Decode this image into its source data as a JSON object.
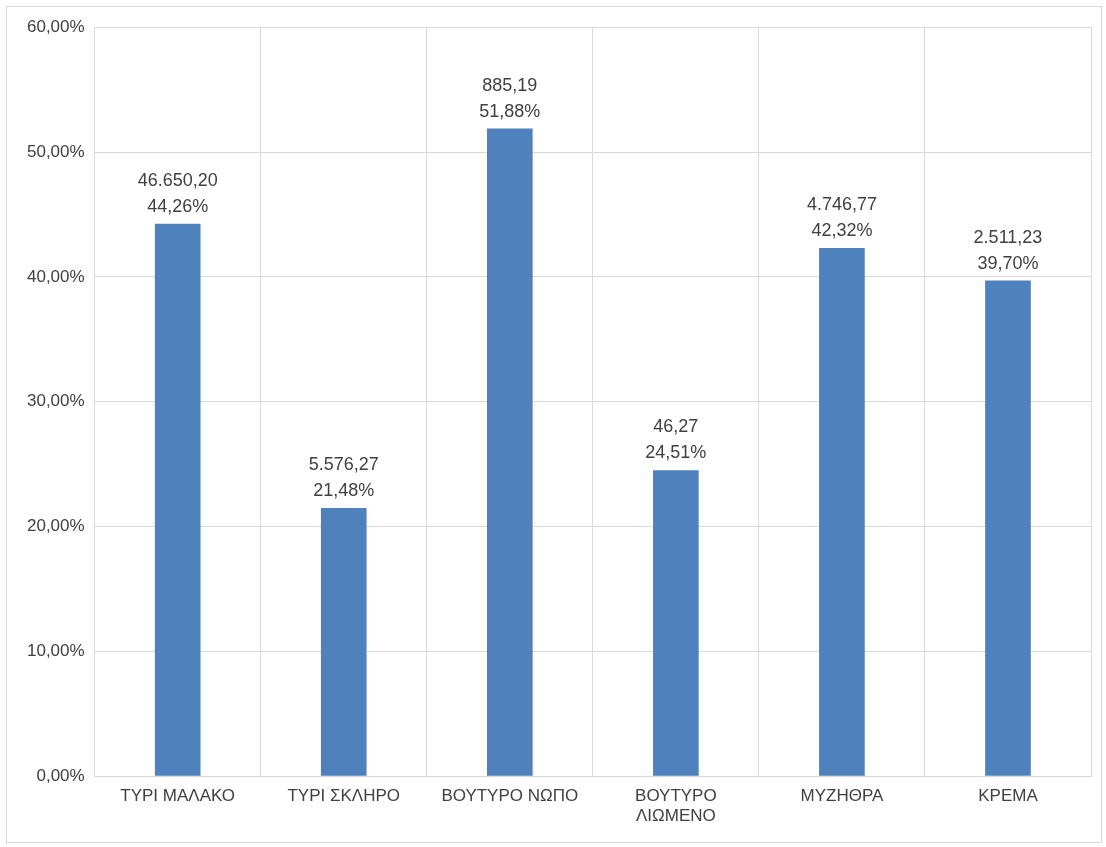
{
  "chart_data": {
    "type": "bar",
    "categories": [
      "ΤΥΡΙ ΜΑΛΑΚΟ",
      "ΤΥΡΙ ΣΚΛΗΡΟ",
      "ΒΟΥΤΥΡΟ ΝΩΠΟ",
      "ΒΟΥΤΥΡΟ ΛΙΩΜΕΝΟ",
      "ΜΥΖΗΘΡΑ",
      "ΚΡΕΜΑ"
    ],
    "values": [
      44.26,
      21.48,
      51.88,
      24.51,
      42.32,
      39.7
    ],
    "value_labels": [
      "46.650,20\n44,26%",
      "5.576,27\n21,48%",
      "885,19\n51,88%",
      "46,27\n24,51%",
      "4.746,77\n42,32%",
      "2.511,23\n39,70%"
    ],
    "color": "#4f81bd",
    "ylim": [
      0,
      60
    ],
    "yticks": [
      {
        "value": 0,
        "label": "0,00%"
      },
      {
        "value": 10,
        "label": "10,00%"
      },
      {
        "value": 20,
        "label": "20,00%"
      },
      {
        "value": 30,
        "label": "30,00%"
      },
      {
        "value": 40,
        "label": "40,00%"
      },
      {
        "value": 50,
        "label": "50,00%"
      },
      {
        "value": 60,
        "label": "60,00%"
      }
    ],
    "grid": true,
    "legend": false
  }
}
